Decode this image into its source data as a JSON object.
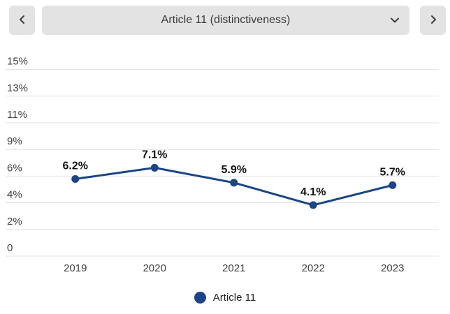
{
  "toolbar": {
    "prev_icon": "chevron-left",
    "next_icon": "chevron-right",
    "dropdown_icon": "chevron-down",
    "dropdown_value": "Article 11 (distinctiveness)"
  },
  "chart_data": {
    "type": "line",
    "title": "Article 11 (distinctiveness)",
    "x": [
      "2019",
      "2020",
      "2021",
      "2022",
      "2023"
    ],
    "series": [
      {
        "name": "Article 11",
        "values": [
          6.2,
          7.1,
          5.9,
          4.1,
          5.7
        ],
        "color": "#1c4587"
      }
    ],
    "point_labels": [
      "6.2%",
      "7.1%",
      "5.9%",
      "4.1%",
      "5.7%"
    ],
    "y_axis": {
      "min": 0,
      "max": 15,
      "tick_labels": [
        "15%",
        "13%",
        "11%",
        "9%",
        "6%",
        "4%",
        "2%",
        "0"
      ]
    },
    "grid": true,
    "grid_color": "#e2e2e2",
    "legend": {
      "position": "bottom",
      "entries": [
        {
          "label": "Article 11",
          "color": "#1c4587"
        }
      ]
    }
  }
}
